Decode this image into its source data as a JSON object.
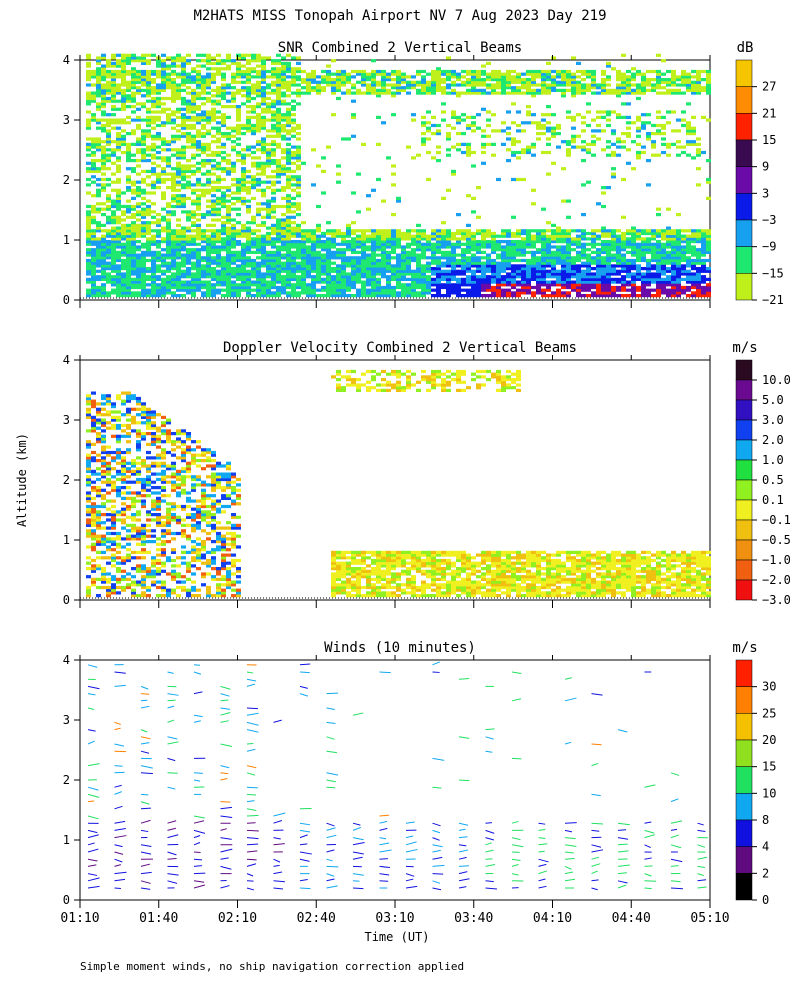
{
  "figure": {
    "title": "M2HATS MISS Tonopah Airport NV   7 Aug 2023 Day 219",
    "ylabel": "Altitude (km)",
    "xlabel": "Time (UT)",
    "footnote": "Simple moment winds, no ship navigation correction applied"
  },
  "chart_data": [
    {
      "type": "heatmap",
      "title": "SNR Combined 2 Vertical Beams",
      "xlabel": "Time (UT)",
      "ylabel": "Altitude (km)",
      "x_ticks": [
        "01:10",
        "01:40",
        "02:10",
        "02:40",
        "03:10",
        "03:40",
        "04:10",
        "04:40",
        "05:10"
      ],
      "y_ticks": [
        "0",
        "1",
        "2",
        "3",
        "4"
      ],
      "ylim": [
        0,
        4
      ],
      "colorbar": {
        "unit": "dB",
        "labels": [
          "27",
          "21",
          "15",
          "9",
          "3",
          "−3",
          "−9",
          "−15",
          "−21"
        ],
        "colors": [
          "#f5c500",
          "#ff8c00",
          "#ff2200",
          "#3a0a50",
          "#6a0aa8",
          "#0a1ae8",
          "#18a0f0",
          "#1ee870",
          "#c0f01c"
        ]
      }
    },
    {
      "type": "heatmap",
      "title": "Doppler Velocity Combined 2 Vertical Beams",
      "xlabel": "Time (UT)",
      "ylabel": "Altitude (km)",
      "x_ticks": [
        "01:10",
        "01:40",
        "02:10",
        "02:40",
        "03:10",
        "03:40",
        "04:10",
        "04:40",
        "05:10"
      ],
      "y_ticks": [
        "0",
        "1",
        "2",
        "3",
        "4"
      ],
      "ylim": [
        0,
        4
      ],
      "colorbar": {
        "unit": "m/s",
        "labels": [
          "10.0",
          "5.0",
          "3.0",
          "2.0",
          "1.0",
          "0.5",
          "0.1",
          "−0.1",
          "−0.5",
          "−1.0",
          "−2.0",
          "−3.0"
        ],
        "colors": [
          "#2a0a20",
          "#6a0a90",
          "#3010c0",
          "#1040f0",
          "#10a8f0",
          "#20e040",
          "#90f020",
          "#f0f020",
          "#f0c010",
          "#f09010",
          "#f06010",
          "#f01010"
        ]
      }
    },
    {
      "type": "barbs",
      "title": "Winds (10 minutes)",
      "xlabel": "Time (UT)",
      "ylabel": "Altitude (km)",
      "x_ticks": [
        "01:10",
        "01:40",
        "02:10",
        "02:40",
        "03:10",
        "03:40",
        "04:10",
        "04:40",
        "05:10"
      ],
      "y_ticks": [
        "0",
        "1",
        "2",
        "3",
        "4"
      ],
      "ylim": [
        0,
        4
      ],
      "colorbar": {
        "unit": "m/s",
        "labels": [
          "30",
          "25",
          "20",
          "15",
          "10",
          "8",
          "4",
          "2",
          "0"
        ],
        "colors": [
          "#ff2000",
          "#ff8000",
          "#f5c000",
          "#90e020",
          "#20e060",
          "#10a8f0",
          "#1010e0",
          "#600a80",
          "#000000"
        ]
      }
    }
  ]
}
